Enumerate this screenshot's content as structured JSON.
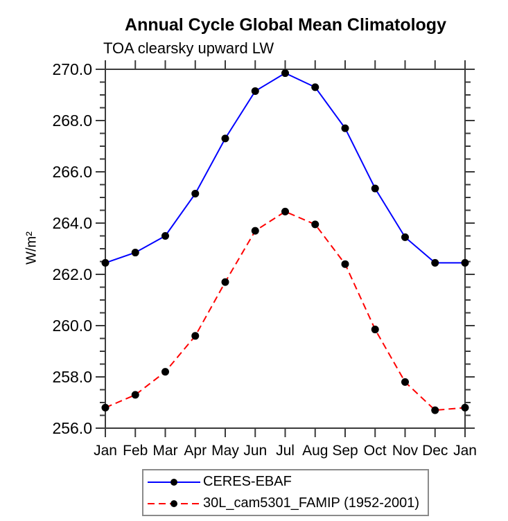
{
  "chart_data": {
    "type": "line",
    "title": "Annual Cycle Global Mean Climatology",
    "subtitle": "TOA clearsky upward LW",
    "ylabel": "W/m²",
    "xlabel": "",
    "categories": [
      "Jan",
      "Feb",
      "Mar",
      "Apr",
      "May",
      "Jun",
      "Jul",
      "Aug",
      "Sep",
      "Oct",
      "Nov",
      "Dec",
      "Jan"
    ],
    "ylim": [
      256.0,
      270.0
    ],
    "ytick_major": 2.0,
    "ytick_minor": 0.5,
    "ytick_label_format": "one_decimal",
    "grid": false,
    "legend_position": "bottom-center",
    "axis_color": "#3a3a3a",
    "marker_color": "#000000",
    "series": [
      {
        "name": "CERES-EBAF",
        "color": "#0000ff",
        "line_style": "solid",
        "marker": "circle",
        "values": [
          262.45,
          262.85,
          263.5,
          265.15,
          267.3,
          269.15,
          269.85,
          269.3,
          267.7,
          265.35,
          263.45,
          262.45,
          262.45
        ]
      },
      {
        "name": "30L_cam5301_FAMIP (1952-2001)",
        "color": "#ff0000",
        "line_style": "dashed",
        "marker": "circle",
        "values": [
          256.8,
          257.3,
          258.2,
          259.6,
          261.7,
          263.7,
          264.45,
          263.95,
          262.4,
          259.85,
          257.8,
          256.7,
          256.8
        ]
      }
    ]
  }
}
